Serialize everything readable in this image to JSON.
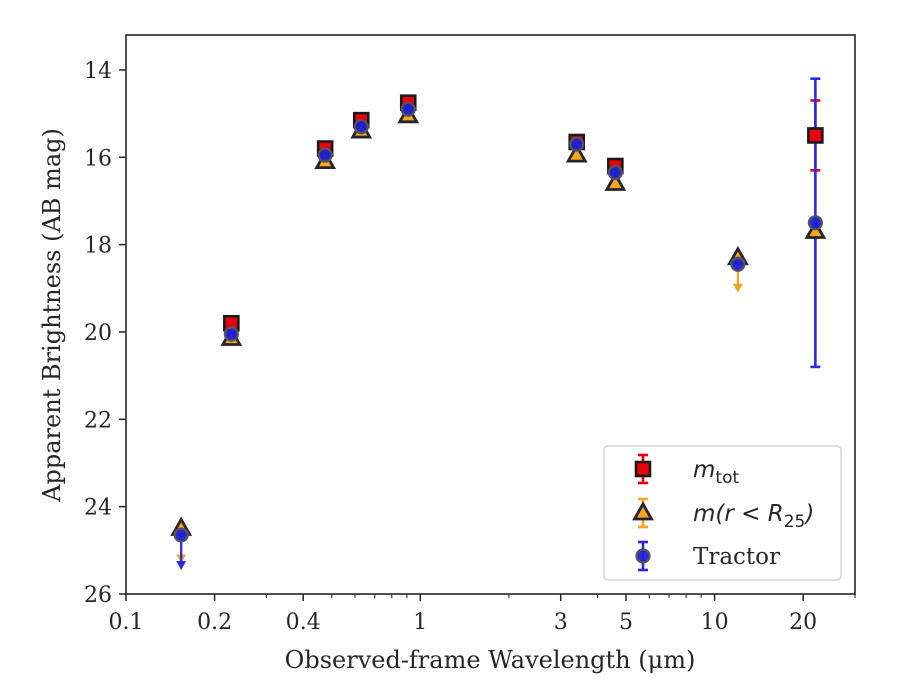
{
  "chart_data": {
    "type": "scatter",
    "x_scale": "log",
    "y_inverted": true,
    "xlabel": "Observed-frame Wavelength (μm)",
    "ylabel": "Apparent Brightness (AB mag)",
    "xlim": [
      0.1,
      30
    ],
    "ylim": [
      26,
      13.2
    ],
    "xticks": [
      {
        "value": 0.1,
        "label": "0.1"
      },
      {
        "value": 0.2,
        "label": "0.2"
      },
      {
        "value": 0.4,
        "label": "0.4"
      },
      {
        "value": 1,
        "label": "1"
      },
      {
        "value": 3,
        "label": "3"
      },
      {
        "value": 5,
        "label": "5"
      },
      {
        "value": 10,
        "label": "10"
      },
      {
        "value": 20,
        "label": "20"
      }
    ],
    "yticks": [
      {
        "value": 14,
        "label": "14"
      },
      {
        "value": 16,
        "label": "16"
      },
      {
        "value": 18,
        "label": "18"
      },
      {
        "value": 20,
        "label": "20"
      },
      {
        "value": 22,
        "label": "22"
      },
      {
        "value": 24,
        "label": "24"
      },
      {
        "value": 26,
        "label": "26"
      }
    ],
    "grid": false,
    "legend_position": "lower-right",
    "series": [
      {
        "key": "mtot",
        "legend_main": "m",
        "legend_sub": "tot",
        "marker": "square",
        "fill": "#e8000b",
        "edge": "#1a1a1a",
        "err_color": "#e8000b",
        "points": [
          {
            "x": 0.228,
            "y": 19.8
          },
          {
            "x": 0.475,
            "y": 15.8
          },
          {
            "x": 0.63,
            "y": 15.15
          },
          {
            "x": 0.91,
            "y": 14.75
          },
          {
            "x": 3.4,
            "y": 15.65
          },
          {
            "x": 4.6,
            "y": 16.2
          },
          {
            "x": 22,
            "y": 15.5,
            "yerr": 0.8
          }
        ]
      },
      {
        "key": "r25",
        "legend_main": "m(r < R",
        "legend_sub": "25",
        "legend_tail": ")",
        "marker": "triangle",
        "fill": "#f5a623",
        "edge": "#262626",
        "err_color": "#f5a623",
        "points": [
          {
            "x": 0.154,
            "y": 24.5,
            "upper_limit": true
          },
          {
            "x": 0.228,
            "y": 20.15
          },
          {
            "x": 0.475,
            "y": 16.1
          },
          {
            "x": 0.63,
            "y": 15.4
          },
          {
            "x": 0.91,
            "y": 15.05
          },
          {
            "x": 3.4,
            "y": 15.95
          },
          {
            "x": 4.6,
            "y": 16.6
          },
          {
            "x": 12,
            "y": 18.3,
            "upper_limit": true
          },
          {
            "x": 22,
            "y": 17.7
          }
        ]
      },
      {
        "key": "tractor",
        "legend_main": "Tractor",
        "marker": "circle",
        "fill": "#1f1fd6",
        "edge": "#555555",
        "err_color": "#2a2ae8",
        "points": [
          {
            "x": 0.154,
            "y": 24.65,
            "upper_limit": true
          },
          {
            "x": 0.228,
            "y": 20.05
          },
          {
            "x": 0.475,
            "y": 15.95
          },
          {
            "x": 0.63,
            "y": 15.3
          },
          {
            "x": 0.91,
            "y": 14.9
          },
          {
            "x": 3.4,
            "y": 15.7
          },
          {
            "x": 4.6,
            "y": 16.35
          },
          {
            "x": 12,
            "y": 18.45
          },
          {
            "x": 22,
            "y": 17.5,
            "yerr": 3.3
          }
        ]
      }
    ]
  }
}
